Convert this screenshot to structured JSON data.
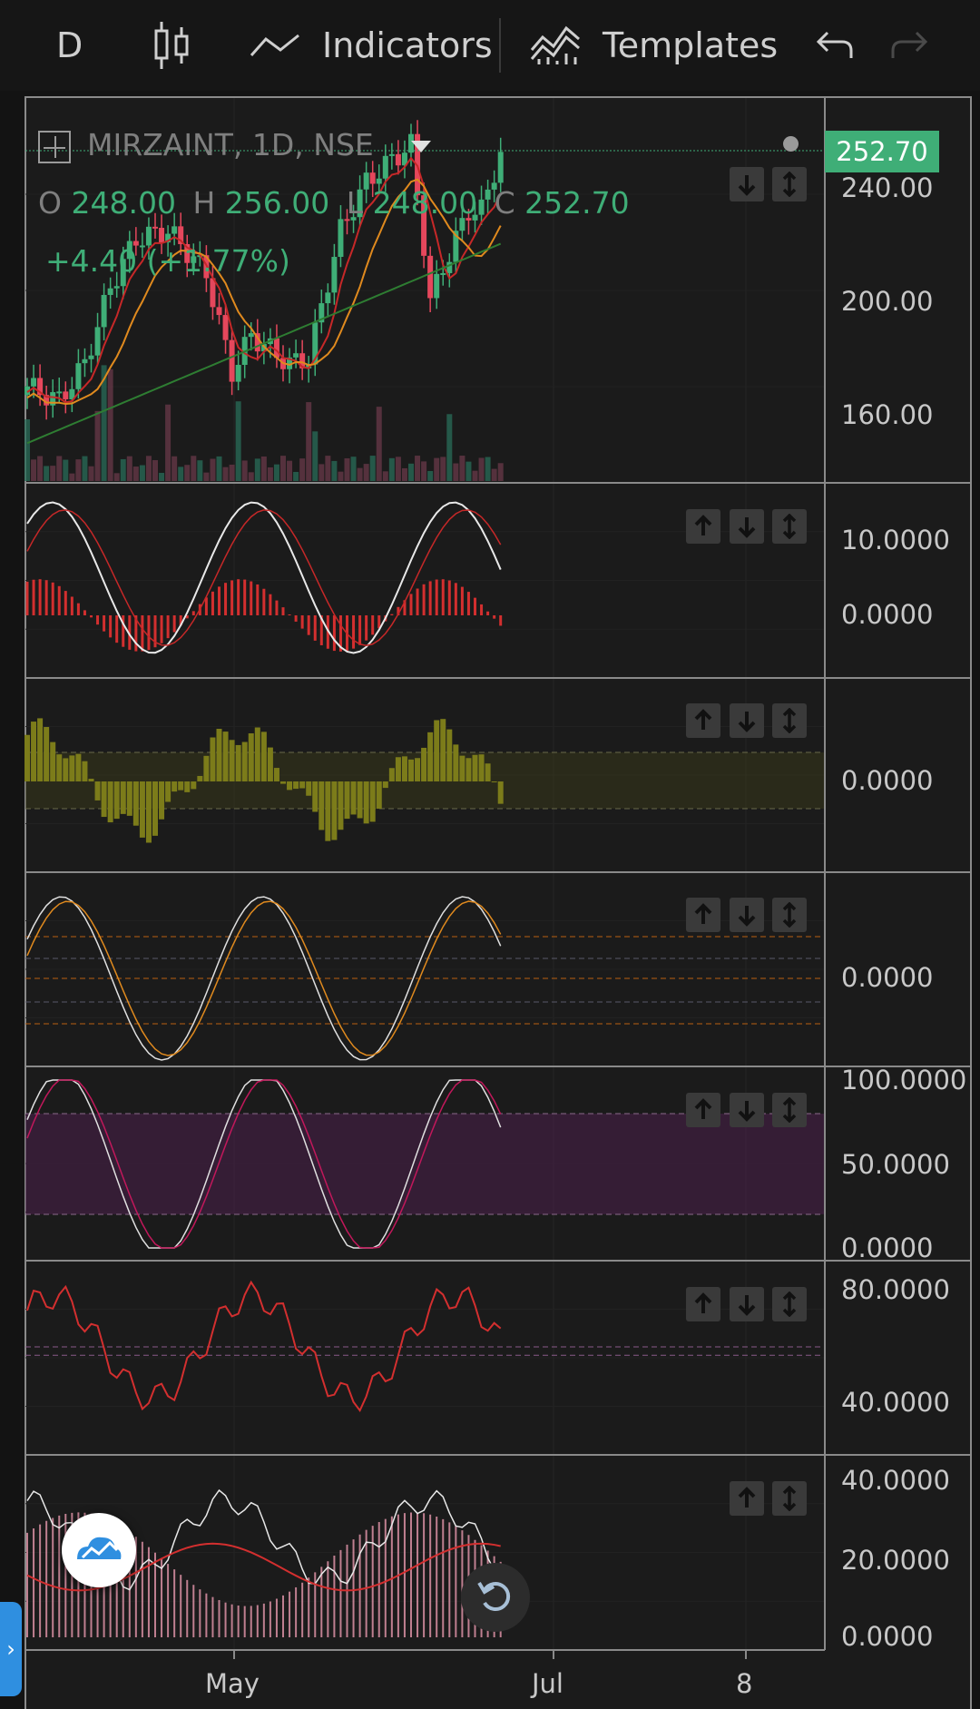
{
  "toolbar": {
    "interval": "D",
    "indicators_label": "Indicators",
    "templates_label": "Templates",
    "icons": [
      "candles-icon",
      "indicators-icon",
      "templates-icon",
      "undo-icon",
      "redo-icon"
    ]
  },
  "symbol": {
    "title": "MIRZAINT, 1D, NSE",
    "open_label": "O",
    "open": "248.00",
    "high_label": "H",
    "high": "256.00",
    "low_label": "L",
    "low": "248.00",
    "close_label": "C",
    "close": "252.70",
    "change": "+4.40 (+1.77%)",
    "last_price": "252.70"
  },
  "price_axis": [
    "240.00",
    "200.00",
    "160.00"
  ],
  "time_axis": [
    "May",
    "Jul",
    "8"
  ],
  "indicator_axes": {
    "macd": [
      "10.0000",
      "0.0000"
    ],
    "histogram": [
      "0.0000"
    ],
    "oscillator": [
      "0.0000"
    ],
    "stochastic": [
      "100.0000",
      "50.0000",
      "0.0000"
    ],
    "rsi": [
      "80.0000",
      "40.0000"
    ],
    "dmi": [
      "40.0000",
      "20.0000",
      "0.0000"
    ]
  },
  "colors": {
    "bull": "#3fae77",
    "bear": "#e5475c",
    "accent_button": "#2f8fe0",
    "price_tag": "#3fae77"
  }
}
